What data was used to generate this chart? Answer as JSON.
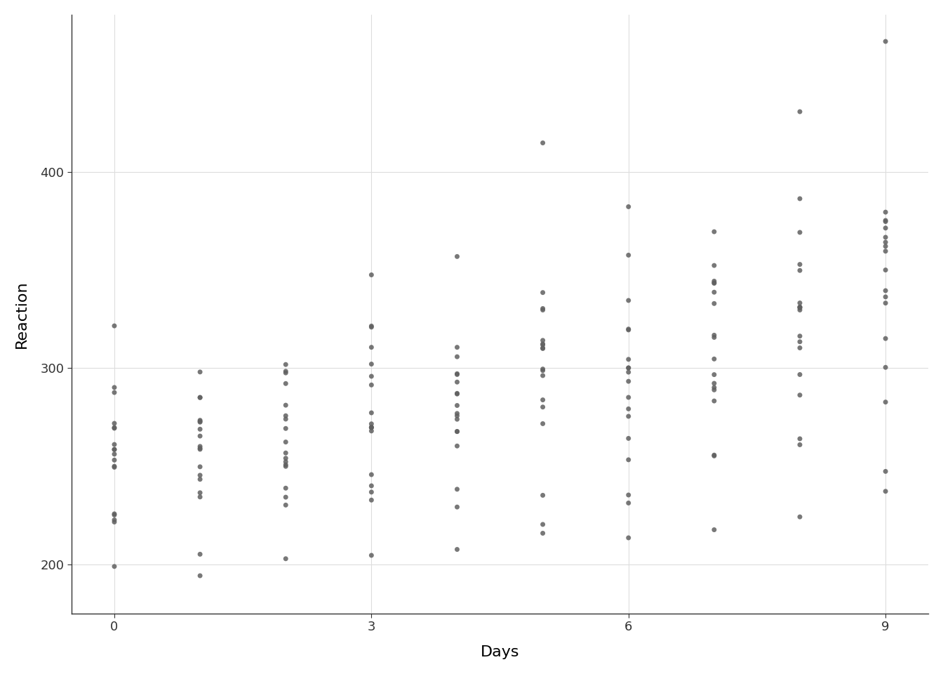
{
  "title": "",
  "xlabel": "Days",
  "ylabel": "Reaction",
  "background_color": "#ffffff",
  "grid_color": "#dddddd",
  "point_color": "#606060",
  "point_size": 25,
  "point_alpha": 0.85,
  "xlim": [
    -0.5,
    9.5
  ],
  "ylim": [
    175,
    480
  ],
  "xticks": [
    0,
    3,
    6,
    9
  ],
  "yticks": [
    200,
    300,
    400
  ],
  "days": [
    0,
    1,
    2,
    3,
    4,
    5,
    6,
    7,
    8,
    9,
    0,
    1,
    2,
    3,
    4,
    5,
    6,
    7,
    8,
    9,
    0,
    1,
    2,
    3,
    4,
    5,
    6,
    7,
    8,
    9,
    0,
    1,
    2,
    3,
    4,
    5,
    6,
    7,
    8,
    9,
    0,
    1,
    2,
    3,
    4,
    5,
    6,
    7,
    8,
    9,
    0,
    1,
    2,
    3,
    4,
    5,
    6,
    7,
    8,
    9,
    0,
    1,
    2,
    3,
    4,
    5,
    6,
    7,
    8,
    9,
    0,
    1,
    2,
    3,
    4,
    5,
    6,
    7,
    8,
    9,
    0,
    1,
    2,
    3,
    4,
    5,
    6,
    7,
    8,
    9,
    0,
    1,
    2,
    3,
    4,
    5,
    6,
    7,
    8,
    9,
    0,
    1,
    2,
    3,
    4,
    5,
    6,
    7,
    8,
    9,
    0,
    1,
    2,
    3,
    4,
    5,
    6,
    7,
    8,
    9,
    0,
    1,
    2,
    3,
    4,
    5,
    6,
    7,
    8,
    9,
    0,
    1,
    2,
    3,
    4,
    5,
    6,
    7,
    8,
    9,
    0,
    1,
    2,
    3,
    4,
    5,
    6,
    7,
    8,
    9,
    0,
    1,
    2,
    3,
    4,
    5,
    6,
    7,
    8,
    9,
    0,
    1,
    2,
    3,
    4,
    5,
    6,
    7,
    8,
    9,
    0,
    1,
    2,
    3,
    4,
    5,
    6,
    7,
    8,
    9
  ],
  "reaction": [
    249.56,
    258.7,
    250.8,
    321.44,
    356.85,
    414.69,
    382.2,
    290.15,
    430.59,
    466.35,
    222.73,
    205.27,
    202.98,
    204.7,
    207.72,
    215.96,
    213.63,
    217.73,
    224.29,
    237.31,
    199.05,
    194.33,
    234.32,
    232.84,
    229.31,
    220.45,
    235.43,
    255.75,
    261.01,
    247.45,
    321.54,
    298.06,
    292.17,
    347.5,
    310.63,
    330.36,
    253.36,
    369.47,
    331.08,
    362.05,
    287.61,
    285.0,
    301.86,
    320.89,
    297.17,
    338.5,
    357.55,
    352.29,
    386.3,
    366.64,
    290.18,
    285.13,
    275.77,
    269.84,
    286.86,
    298.8,
    293.3,
    292.27,
    296.75,
    315.09,
    225.83,
    236.58,
    230.31,
    236.91,
    238.36,
    235.28,
    231.35,
    255.33,
    264.06,
    282.74,
    269.41,
    273.47,
    297.6,
    310.63,
    287.17,
    329.61,
    334.48,
    343.22,
    369.14,
    364.12,
    256.23,
    243.42,
    256.83,
    271.64,
    273.99,
    299.55,
    304.49,
    315.68,
    310.33,
    359.57,
    250.05,
    259.24,
    250.01,
    269.8,
    281.01,
    271.74,
    279.27,
    288.95,
    286.3,
    300.41,
    221.68,
    245.48,
    252.34,
    268.03,
    276.95,
    310.24,
    297.97,
    338.68,
    316.33,
    333.14,
    271.9,
    268.93,
    298.42,
    295.86,
    292.93,
    314.15,
    319.9,
    344.31,
    349.75,
    379.44,
    225.26,
    234.43,
    238.92,
    240.11,
    267.79,
    280.21,
    300.11,
    316.79,
    330.64,
    375.21,
    269.74,
    272.9,
    281.15,
    291.45,
    296.77,
    312.36,
    319.47,
    343.52,
    352.83,
    371.34,
    261.15,
    265.44,
    269.3,
    277.27,
    305.82,
    311.85,
    300.17,
    332.91,
    331.12,
    349.98,
    258.66,
    272.53,
    274.07,
    269.81,
    267.72,
    310.0,
    275.49,
    296.71,
    329.61,
    339.47,
    258.53,
    249.79,
    254.14,
    245.8,
    260.38,
    296.23,
    264.25,
    283.31,
    313.45,
    374.64,
    253.21,
    260.17,
    262.4,
    302.08,
    275.75,
    283.85,
    285.13,
    304.68,
    333.2,
    336.29
  ]
}
